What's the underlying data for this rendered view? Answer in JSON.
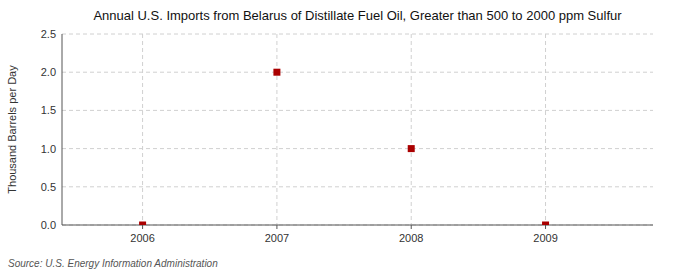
{
  "chart_data": {
    "type": "scatter",
    "title": "Annual U.S. Imports from Belarus of Distillate Fuel Oil, Greater than 500 to 2000 ppm Sulfur",
    "ylabel": "Thousand Barrels per Day",
    "source": "Source: U.S. Energy Information Administration",
    "x": [
      2006,
      2007,
      2008,
      2009
    ],
    "values": [
      0.0,
      2.0,
      1.0,
      0.0
    ],
    "xlim": [
      2005.4,
      2009.8
    ],
    "ylim": [
      0,
      2.5
    ],
    "xticks": [
      2006,
      2007,
      2008,
      2009
    ],
    "yticks": [
      {
        "value": 0.0,
        "label": "0.0"
      },
      0.5,
      {
        "value": 1.0,
        "label": "1.0"
      },
      1.5,
      {
        "value": 2.0,
        "label": "2.0"
      },
      2.5
    ],
    "color": "#aa0000",
    "marker": "square",
    "grid": true
  }
}
